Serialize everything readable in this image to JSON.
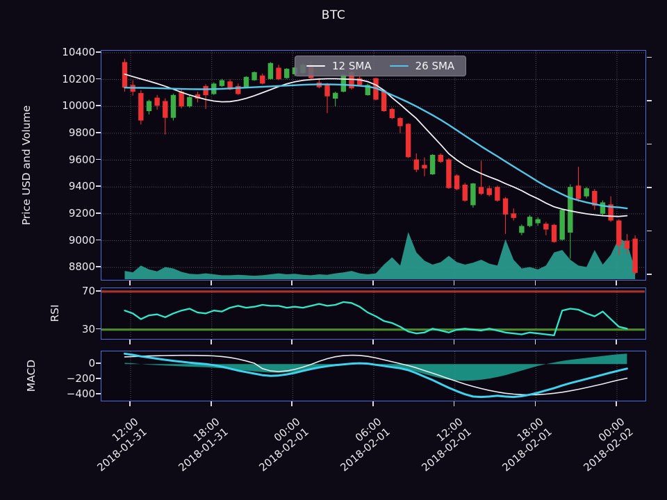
{
  "title": "BTC",
  "legend": [
    {
      "label": "12 SMA",
      "color": "#f2f2f6"
    },
    {
      "label": "26 SMA",
      "color": "#52c6e8"
    }
  ],
  "axes": {
    "price": {
      "label": "Price USD and Volume",
      "tick_labels": [
        "10400",
        "10200",
        "10000",
        "9800",
        "9600",
        "9400",
        "9200",
        "9000",
        "8800"
      ],
      "tick_values": [
        10400,
        10200,
        10000,
        9800,
        9600,
        9400,
        9200,
        9000,
        8800
      ],
      "range": [
        8713,
        10415
      ]
    },
    "rsi": {
      "label": "RSI",
      "tick_labels": [
        "70",
        "30"
      ],
      "tick_values": [
        70,
        30
      ],
      "range": [
        21,
        73.5
      ],
      "overbought": 70,
      "oversold": 30
    },
    "macd": {
      "label": "MACD",
      "tick_labels": [
        "0",
        "−200",
        "−400"
      ],
      "tick_values": [
        0,
        -200,
        -400
      ],
      "range": [
        -470,
        165
      ]
    },
    "x": {
      "tick_labels": [
        [
          "12:00",
          "2018-01-31"
        ],
        [
          "18:00",
          "2018-01-31"
        ],
        [
          "00:00",
          "2018-02-01"
        ],
        [
          "06:00",
          "2018-02-01"
        ],
        [
          "12:00",
          "2018-02-01"
        ],
        [
          "18:00",
          "2018-02-01"
        ],
        [
          "00:00",
          "2018-02-02"
        ]
      ],
      "positions_rel": [
        0.0535,
        0.2022,
        0.3507,
        0.4994,
        0.648,
        0.7966,
        0.9452
      ]
    }
  },
  "colors": {
    "background": "#0d0a15",
    "panel_background": "#0a0712",
    "panel_border": "#4a6de0",
    "grid": "rgba(215,215,225,0.38)",
    "text": "#ececf0",
    "candle_up": "#3cb046",
    "candle_down": "#ee3233",
    "volume_fill": "#2a9d8f",
    "sma12": "#f2f2f6",
    "sma26": "#52c6e8",
    "rsi_line": "#2ee9cb",
    "overbought_band": "#a93229",
    "oversold_band": "#4c8c28",
    "macd_line": "#3fd2ef",
    "signal_line": "#eceef2",
    "hist_fill": "#1ea18f"
  },
  "chart_data": {
    "type": "candlestick+indicators",
    "x_start_rel": 0.04268,
    "x_step_rel": 0.014854,
    "candles": {
      "open": [
        10330,
        10160,
        10100,
        9965,
        10065,
        10040,
        9915,
        10110,
        10000,
        10090,
        10152,
        10092,
        10152,
        10186,
        10152,
        10140,
        10195,
        10230,
        10204,
        10288,
        10211,
        10240,
        10250,
        10310,
        10178,
        10160,
        10058,
        10110,
        10255,
        10210,
        10084,
        10210,
        10118,
        9981,
        9913,
        9870,
        9605,
        9564,
        9494,
        9639,
        9605,
        9486,
        9417,
        9264,
        9400,
        9390,
        9400,
        9315,
        9203,
        9058,
        9109,
        9130,
        9126,
        9118,
        9007,
        9060,
        9410,
        9330,
        9370,
        9200,
        9270,
        9150,
        9000,
        9015
      ],
      "high": [
        10355,
        10195,
        10120,
        10050,
        10085,
        10060,
        10095,
        10135,
        10085,
        10110,
        10165,
        10180,
        10205,
        10200,
        10170,
        10225,
        10260,
        10245,
        10330,
        10310,
        10285,
        10300,
        10320,
        10335,
        10210,
        10175,
        10110,
        10245,
        10270,
        10225,
        10170,
        10215,
        10125,
        9990,
        9920,
        9875,
        9650,
        9620,
        9645,
        9650,
        9615,
        9495,
        9430,
        9430,
        9595,
        9410,
        9410,
        9325,
        9240,
        9120,
        9190,
        9175,
        9140,
        9125,
        9235,
        9420,
        9550,
        9400,
        9385,
        9300,
        9330,
        9160,
        9050,
        9040
      ],
      "low": [
        10110,
        10080,
        9865,
        9940,
        9975,
        9790,
        9895,
        9985,
        9990,
        10030,
        9980,
        10085,
        10145,
        10120,
        10085,
        10135,
        10190,
        10165,
        10200,
        10195,
        10205,
        10225,
        10240,
        10200,
        10135,
        9950,
        10000,
        10105,
        10125,
        10150,
        10080,
        10045,
        9960,
        9905,
        9800,
        9615,
        9510,
        9480,
        9490,
        9580,
        9385,
        9375,
        9290,
        9246,
        9340,
        9330,
        9290,
        9050,
        9150,
        9040,
        9100,
        9110,
        9040,
        8985,
        9000,
        8865,
        9290,
        9315,
        9230,
        9180,
        9140,
        8890,
        8900,
        8750
      ],
      "close": [
        10140,
        10110,
        9895,
        10040,
        10005,
        9915,
        10085,
        10000,
        10070,
        10058,
        10084,
        10170,
        10195,
        10126,
        10092,
        10220,
        10255,
        10170,
        10323,
        10203,
        10280,
        10290,
        10310,
        10210,
        10143,
        10075,
        10101,
        10237,
        10135,
        10160,
        10160,
        10050,
        9965,
        9913,
        9853,
        9622,
        9528,
        9538,
        9639,
        9587,
        9392,
        9383,
        9298,
        9426,
        9349,
        9340,
        9298,
        9195,
        9169,
        9109,
        9178,
        9160,
        9083,
        8990,
        9229,
        9400,
        9310,
        9390,
        9260,
        9285,
        9150,
        8965,
        8940,
        8760
      ]
    },
    "sma12": [
      10240,
      10222,
      10205,
      10188,
      10170,
      10150,
      10128,
      10105,
      10085,
      10068,
      10052,
      10040,
      10034,
      10036,
      10045,
      10060,
      10080,
      10102,
      10125,
      10148,
      10168,
      10183,
      10194,
      10200,
      10204,
      10206,
      10206,
      10204,
      10202,
      10198,
      10185,
      10160,
      10120,
      10065,
      10015,
      9962,
      9910,
      9845,
      9780,
      9715,
      9648,
      9600,
      9560,
      9528,
      9500,
      9475,
      9452,
      9425,
      9400,
      9372,
      9340,
      9312,
      9280,
      9252,
      9235,
      9222,
      9210,
      9200,
      9192,
      9186,
      9182,
      9180,
      9186,
      null
    ],
    "sma26": [
      10140,
      10139,
      10138,
      10137,
      10136,
      10134,
      10132,
      10130,
      10129,
      10128,
      10128,
      10129,
      10131,
      10134,
      10137,
      10140,
      10143,
      10146,
      10149,
      10152,
      10155,
      10158,
      10161,
      10163,
      10164,
      10164,
      10163,
      10161,
      10158,
      10154,
      10148,
      10136,
      10112,
      10085,
      10058,
      10030,
      10000,
      9968,
      9935,
      9900,
      9862,
      9822,
      9782,
      9742,
      9702,
      9665,
      9628,
      9590,
      9552,
      9515,
      9478,
      9440,
      9405,
      9375,
      9345,
      9318,
      9300,
      9285,
      9272,
      9260,
      9252,
      9248,
      9240,
      null
    ],
    "volume_rel": [
      0.17,
      0.14,
      0.28,
      0.2,
      0.16,
      0.25,
      0.22,
      0.15,
      0.11,
      0.1,
      0.12,
      0.1,
      0.08,
      0.08,
      0.09,
      0.08,
      0.07,
      0.08,
      0.1,
      0.12,
      0.1,
      0.11,
      0.09,
      0.08,
      0.1,
      0.09,
      0.12,
      0.14,
      0.17,
      0.12,
      0.1,
      0.12,
      0.3,
      0.45,
      0.28,
      0.97,
      0.55,
      0.38,
      0.3,
      0.35,
      0.48,
      0.35,
      0.3,
      0.34,
      0.4,
      0.32,
      0.28,
      0.82,
      0.4,
      0.22,
      0.25,
      0.2,
      0.28,
      0.55,
      0.6,
      0.4,
      0.28,
      0.25,
      0.6,
      0.3,
      0.5,
      0.85,
      0.75,
      0.2
    ],
    "rsi": [
      50,
      47,
      41,
      45,
      46,
      43,
      47,
      50,
      52,
      48,
      47,
      50,
      49,
      53,
      55,
      53,
      54,
      56,
      55,
      55,
      53,
      54,
      53,
      55,
      57,
      55,
      56,
      59,
      58,
      54,
      48,
      44,
      39,
      37,
      33,
      28,
      26,
      27,
      31,
      29,
      27,
      30,
      31,
      30,
      29,
      31,
      29,
      27,
      26,
      25,
      27,
      26,
      25,
      24,
      50,
      52,
      51,
      47,
      44,
      49,
      41,
      33,
      31,
      null
    ],
    "macd": {
      "macd": [
        135,
        120,
        100,
        85,
        70,
        55,
        42,
        30,
        18,
        8,
        0,
        -15,
        -35,
        -60,
        -85,
        -105,
        -125,
        -145,
        -155,
        -150,
        -135,
        -115,
        -90,
        -65,
        -45,
        -28,
        -15,
        -5,
        5,
        10,
        5,
        -10,
        -25,
        -40,
        -55,
        -80,
        -120,
        -165,
        -210,
        -260,
        -310,
        -355,
        -395,
        -425,
        -430,
        -425,
        -415,
        -425,
        -430,
        -420,
        -400,
        -375,
        -345,
        -315,
        -280,
        -250,
        -222,
        -195,
        -168,
        -140,
        -112,
        -85,
        -60,
        null
      ],
      "signal": [
        93,
        97,
        101,
        105,
        108,
        111,
        112,
        113,
        113,
        112,
        110,
        106,
        98,
        85,
        65,
        40,
        10,
        -60,
        -90,
        -98,
        -90,
        -70,
        -40,
        -5,
        35,
        70,
        95,
        110,
        115,
        112,
        100,
        80,
        55,
        30,
        5,
        -20,
        -50,
        -85,
        -120,
        -155,
        -192,
        -228,
        -262,
        -293,
        -320,
        -345,
        -365,
        -382,
        -393,
        -400,
        -403,
        -400,
        -393,
        -382,
        -368,
        -350,
        -330,
        -308,
        -284,
        -260,
        -233,
        -208,
        -185,
        null
      ],
      "hist": [
        15,
        10,
        0,
        -8,
        -15,
        -20,
        -25,
        -30,
        -35,
        -38,
        -42,
        -48,
        -55,
        -65,
        -75,
        -85,
        -95,
        -105,
        -112,
        -115,
        -110,
        -100,
        -85,
        -68,
        -50,
        -35,
        -22,
        -12,
        -5,
        0,
        5,
        0,
        -10,
        -25,
        -45,
        -70,
        -100,
        -130,
        -160,
        -185,
        -205,
        -215,
        -218,
        -215,
        -205,
        -190,
        -170,
        -145,
        -115,
        -85,
        -55,
        -25,
        0,
        20,
        40,
        55,
        68,
        80,
        92,
        105,
        118,
        128,
        135,
        null
      ]
    }
  }
}
